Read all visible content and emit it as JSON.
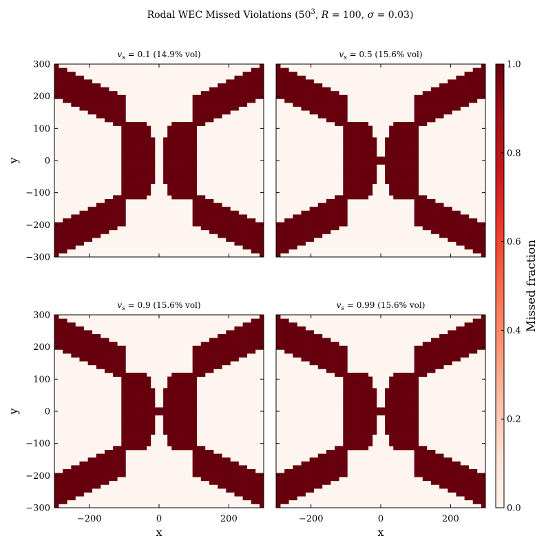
{
  "chart_data": {
    "type": "heatmap",
    "title": "Rodal WEC Missed Violations (50³, R = 100, σ = 0.03)",
    "title_parts": {
      "t1": "Rodal WEC Missed Violations (50",
      "t2": "3",
      "t3": ", ",
      "t4": "R",
      "t5": " = 100, ",
      "t6": "σ",
      "t7": " = 0.03)"
    },
    "grid_resolution": 50,
    "xlim": [
      -300,
      300
    ],
    "ylim": [
      -300,
      300
    ],
    "x_ticks": [
      -200,
      0,
      200
    ],
    "y_ticks": [
      -300,
      -200,
      -100,
      0,
      100,
      200,
      300
    ],
    "x_tick_labels": [
      "−200",
      "0",
      "200"
    ],
    "y_tick_labels": [
      "−300",
      "−200",
      "−100",
      "0",
      "100",
      "200",
      "300"
    ],
    "xlabel": "x",
    "ylabel": "y",
    "grid": false,
    "colormap": "Reds",
    "color_low": "#fff5f0",
    "color_high": "#67000d",
    "colorbar": {
      "label": "Missed fraction",
      "range": [
        0,
        1
      ],
      "ticks": [
        0.0,
        0.2,
        0.4,
        0.6,
        0.8,
        1.0
      ],
      "tick_labels": [
        "0.0",
        "0.2",
        "0.4",
        "0.6",
        "0.8",
        "1.0"
      ],
      "placement": "right"
    },
    "panels": [
      {
        "vs_symbol": "v",
        "vs_sub": "s",
        "vs_value": " = 0.1",
        "vol_note": " (14.9% vol)",
        "v_s": 0.1,
        "missed_volume_pct": 14.9,
        "center_bridge": false
      },
      {
        "vs_symbol": "v",
        "vs_sub": "s",
        "vs_value": " = 0.5",
        "vol_note": " (15.6% vol)",
        "v_s": 0.5,
        "missed_volume_pct": 15.6,
        "center_bridge": true
      },
      {
        "vs_symbol": "v",
        "vs_sub": "s",
        "vs_value": " = 0.9",
        "vol_note": " (15.6% vol)",
        "v_s": 0.9,
        "missed_volume_pct": 15.6,
        "center_bridge": true
      },
      {
        "vs_symbol": "v",
        "vs_sub": "s",
        "vs_value": " = 0.99",
        "vol_note": " (15.6% vol)",
        "v_s": 0.99,
        "missed_volume_pct": 15.6,
        "center_bridge": true
      }
    ],
    "missed_region": {
      "description_values": "missed fraction 1.0 inside region, 0.0 elsewhere",
      "diagonal_bands": [
        {
          "y_outer": [
            -300,
            -200
          ],
          "x_range": [
            -300,
            -100
          ]
        },
        {
          "y_outer": [
            200,
            300
          ],
          "x_range": [
            -300,
            -100
          ]
        }
      ],
      "lobe_half_height": 120,
      "lobe_x_range": [
        -110,
        -12
      ]
    }
  }
}
